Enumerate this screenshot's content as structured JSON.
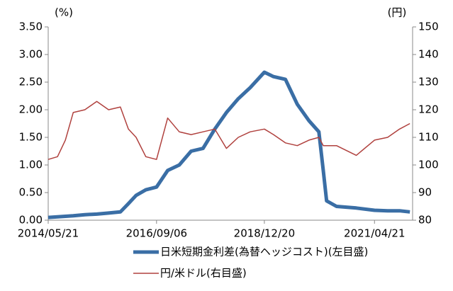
{
  "chart_data": {
    "type": "line",
    "y_unit_label": "(%)",
    "y2_unit_label": "(円)",
    "x": [
      "2014/05/21",
      "2014/08/01",
      "2014/10/01",
      "2014/12/01",
      "2015/03/01",
      "2015/06/01",
      "2015/09/01",
      "2015/12/01",
      "2016/02/01",
      "2016/04/01",
      "2016/06/15",
      "2016/09/06",
      "2016/12/01",
      "2017/03/01",
      "2017/06/01",
      "2017/09/01",
      "2017/12/01",
      "2018/03/01",
      "2018/06/01",
      "2018/09/01",
      "2018/12/20",
      "2019/03/01",
      "2019/06/01",
      "2019/09/01",
      "2019/12/01",
      "2020/02/15",
      "2020/03/20",
      "2020/04/15",
      "2020/07/01",
      "2020/12/01",
      "2021/04/21",
      "2021/08/01",
      "2021/11/01",
      "2022/01/20"
    ],
    "xlim": [
      "2014/05/21",
      "2022/02/10"
    ],
    "xticks": [
      "2014/05/21",
      "2016/09/06",
      "2018/12/20",
      "2021/04/21"
    ],
    "ylim": [
      0,
      3.5
    ],
    "yticks": [
      {
        "value": 0,
        "label": "0.00"
      },
      {
        "value": 0.5,
        "label": "0.50"
      },
      {
        "value": 1,
        "label": "1.00"
      },
      {
        "value": 1.5,
        "label": "1.50"
      },
      {
        "value": 2,
        "label": "2.00"
      },
      {
        "value": 2.5,
        "label": "2.50"
      },
      {
        "value": 3,
        "label": "3.00"
      },
      {
        "value": 3.5,
        "label": "3.50"
      }
    ],
    "y2lim": [
      80,
      150
    ],
    "y2ticks": [
      80,
      90,
      100,
      110,
      120,
      130,
      140,
      150
    ],
    "grid": false,
    "series": [
      {
        "name": "日米短期金利差(為替ヘッジコスト)(左目盛)",
        "color": "#3a6ea5",
        "width": 5,
        "values": [
          0.05,
          0.06,
          0.07,
          0.08,
          0.1,
          0.11,
          0.13,
          0.15,
          0.3,
          0.45,
          0.55,
          0.6,
          0.9,
          1.0,
          1.25,
          1.3,
          1.65,
          1.95,
          2.2,
          2.4,
          2.68,
          2.6,
          2.55,
          2.1,
          1.8,
          1.6,
          0.9,
          0.35,
          0.25,
          0.22,
          0.18,
          0.17,
          0.17,
          0.15
        ]
      },
      {
        "name": "円/米ドル(右目盛)",
        "color": "#b0413e",
        "width": 1.5,
        "axis": "y2",
        "values": [
          102,
          103,
          109,
          119,
          120,
          123,
          120,
          121,
          113,
          110,
          103,
          102,
          117,
          112,
          111,
          112,
          113,
          106,
          110,
          112,
          113,
          111,
          108,
          107,
          109,
          110,
          107,
          107,
          107,
          103.5,
          109,
          110,
          113,
          115
        ]
      }
    ]
  }
}
